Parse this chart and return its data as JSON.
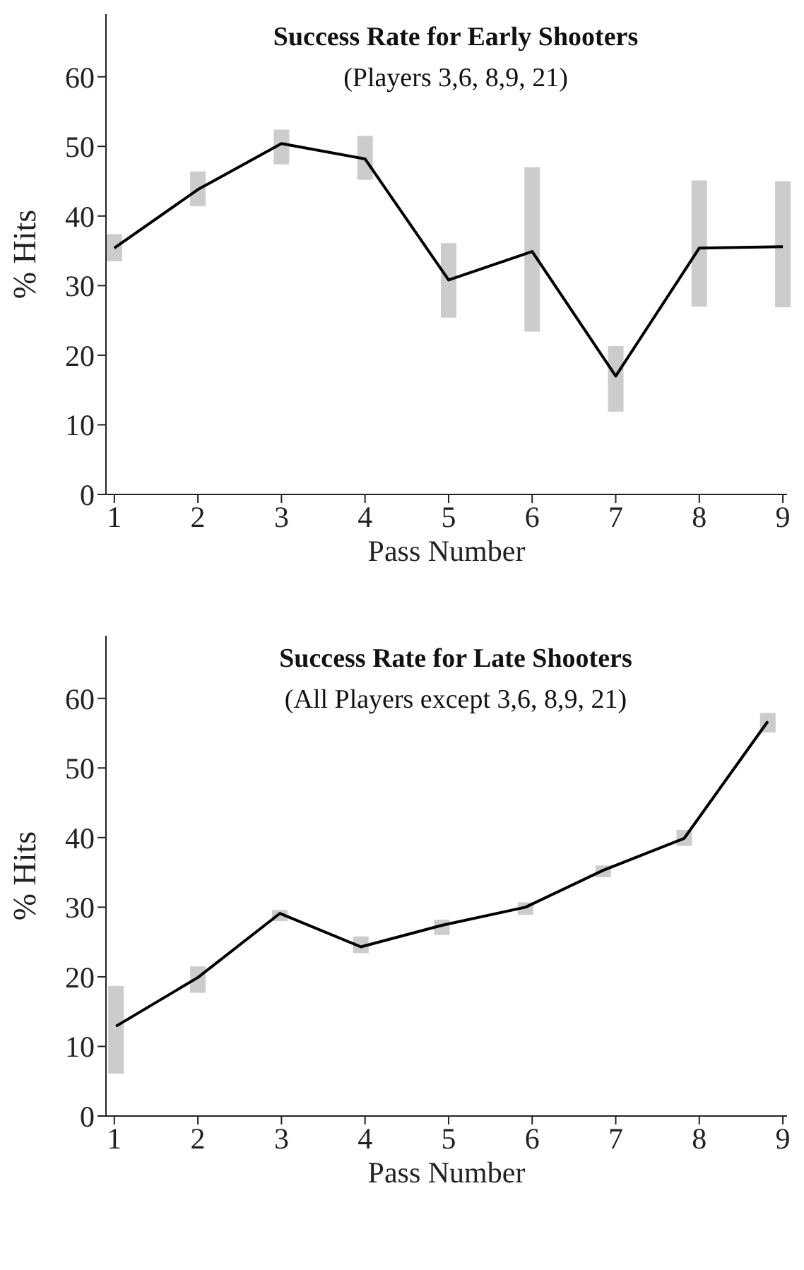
{
  "chart_data": [
    {
      "type": "line",
      "title": "Success Rate for Early Shooters",
      "subtitle": "(Players 3,6, 8,9, 21)",
      "xlabel": "Pass Number",
      "ylabel": "% Hits",
      "marker": "none",
      "x": [
        1,
        2,
        3,
        4,
        5,
        6,
        7,
        8,
        9
      ],
      "series": [
        {
          "color": "#000000",
          "values": [
            35.4,
            43.8,
            50.4,
            48.2,
            30.8,
            34.9,
            17.0,
            35.4,
            35.6
          ],
          "errors": [
            [
              33.5,
              37.4
            ],
            [
              41.4,
              46.4
            ],
            [
              47.4,
              52.4
            ],
            [
              45.2,
              51.5
            ],
            [
              25.4,
              36.1
            ],
            [
              23.4,
              47.0
            ],
            [
              11.9,
              21.3
            ],
            [
              27.0,
              45.1
            ],
            [
              26.9,
              45.0
            ]
          ]
        }
      ],
      "xlim": [
        0.9,
        9.05
      ],
      "xticks": [
        1,
        2,
        3,
        4,
        5,
        6,
        7,
        8,
        9
      ],
      "ylim": [
        0,
        69
      ],
      "yticks": [
        0,
        10,
        20,
        30,
        40,
        50,
        60
      ]
    },
    {
      "type": "line",
      "title": "Success Rate for Late Shooters",
      "subtitle": "(All Players except 3,6, 8,9, 21)",
      "xlabel": "Pass Number",
      "ylabel": "% Hits",
      "marker": "none",
      "x": [
        1.02,
        2,
        2.98,
        3.95,
        4.92,
        5.92,
        6.85,
        7.82,
        8.82
      ],
      "series": [
        {
          "color": "#000000",
          "values": [
            12.9,
            19.9,
            29.1,
            24.3,
            27.4,
            30.0,
            35.3,
            39.9,
            56.7
          ],
          "errors": [
            [
              6.1,
              18.7
            ],
            [
              17.7,
              21.5
            ],
            [
              28.0,
              29.6
            ],
            [
              23.4,
              25.8
            ],
            [
              26.0,
              28.2
            ],
            [
              28.9,
              30.7
            ],
            [
              34.3,
              36.0
            ],
            [
              38.8,
              41.1
            ],
            [
              55.1,
              57.9
            ]
          ]
        }
      ],
      "xlim": [
        0.9,
        9.05
      ],
      "xticks": [
        1,
        2,
        3,
        4,
        5,
        6,
        7,
        8,
        9
      ],
      "ylim": [
        0,
        69
      ],
      "yticks": [
        0,
        10,
        20,
        30,
        40,
        50,
        60
      ]
    }
  ]
}
